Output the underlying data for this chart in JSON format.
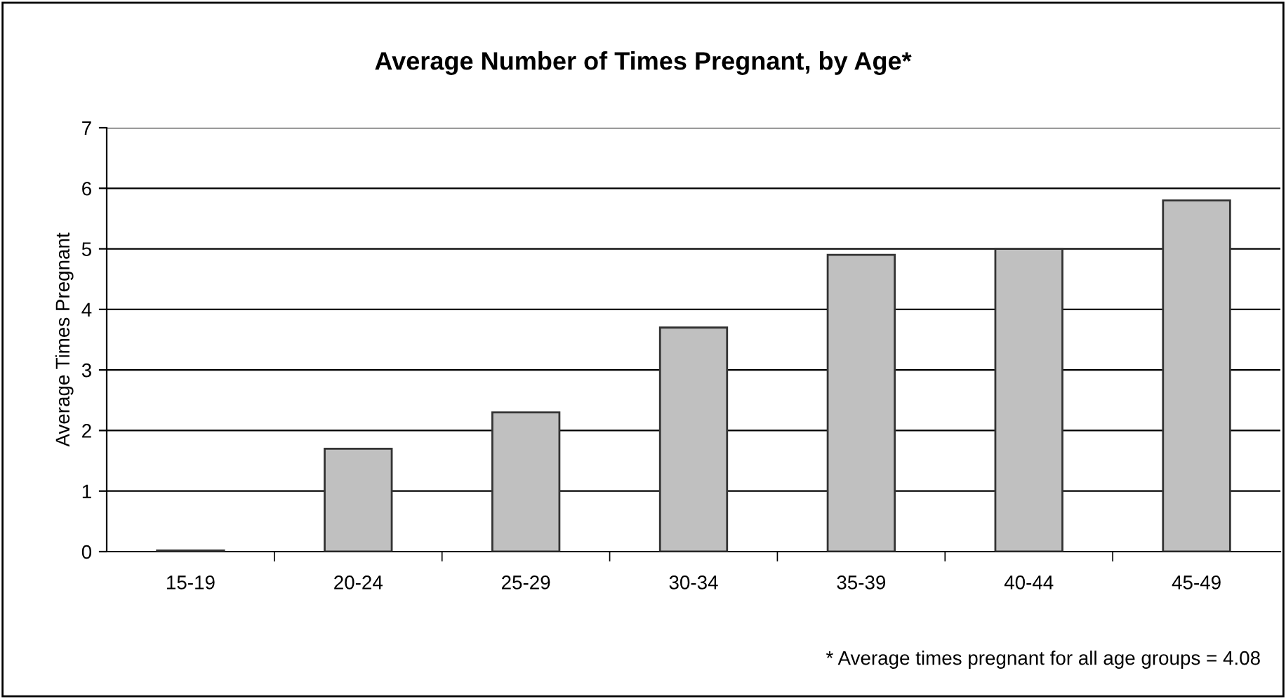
{
  "chart_data": {
    "type": "bar",
    "title": "Average Number of Times Pregnant, by Age*",
    "ylabel": "Average Times Pregnant",
    "categories": [
      "15-19",
      "20-24",
      "25-29",
      "30-34",
      "35-39",
      "40-44",
      "45-49"
    ],
    "values": [
      0.02,
      1.7,
      2.3,
      3.7,
      4.9,
      5.0,
      5.8
    ],
    "color": "#c0c0c0",
    "ylim": [
      0,
      7
    ],
    "yticks": [
      0,
      1,
      2,
      3,
      4,
      5,
      6,
      7
    ],
    "grid": "y",
    "annotations": [
      "* Average times pregnant for all age groups = 4.08"
    ]
  }
}
